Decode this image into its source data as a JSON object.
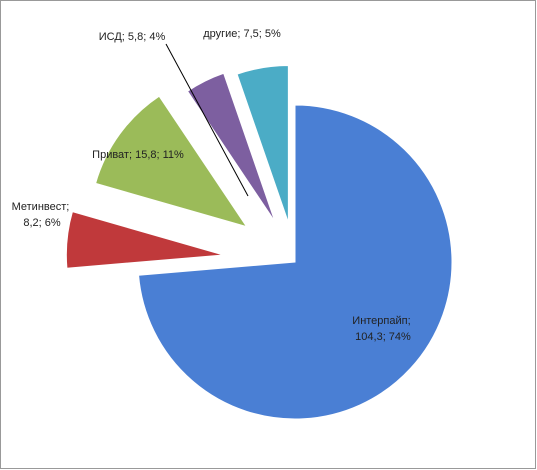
{
  "chart_data": {
    "type": "pie",
    "values": [
      104.3,
      8.2,
      15.8,
      5.8,
      7.5
    ],
    "value_labels": [
      "Интерпайп; 104,3; 74%",
      "Метинвест; 8,2; 6%",
      "Приват; 15,8; 11%",
      "ИСД; 5,8; 4%",
      "другие; 7,5; 5%"
    ],
    "colors": [
      "#4a7fd4",
      "#c0393b",
      "#9bbb59",
      "#7d5fa0",
      "#4bacc6"
    ]
  }
}
